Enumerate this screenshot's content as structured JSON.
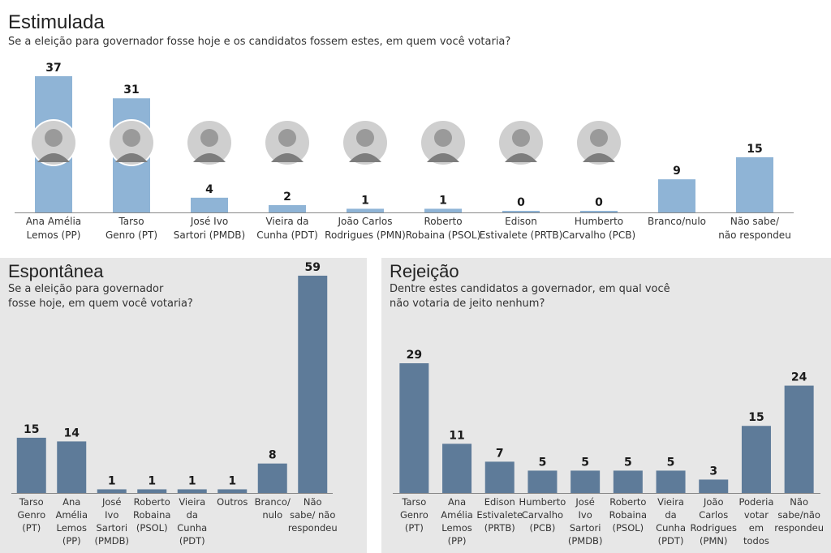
{
  "colors": {
    "light_bar": "#8fb4d6",
    "dark_bar": "#5e7b99",
    "axis": "#888888",
    "panel_bg": "#e7e7e7"
  },
  "charts": [
    {
      "id": "estimulada",
      "title": "Estimulada",
      "subtitle": "Se a eleição para governador fosse hoje e os candidatos fossem estes, em quem você votaria?",
      "chart_data": {
        "type": "bar",
        "categories": [
          [
            "Ana Amélia",
            "Lemos (PP)"
          ],
          [
            "Tarso",
            "Genro (PT)"
          ],
          [
            "José Ivo",
            "Sartori (PMDB)"
          ],
          [
            "Vieira da",
            "Cunha (PDT)"
          ],
          [
            "João Carlos",
            "Rodrigues (PMN)"
          ],
          [
            "Roberto",
            "Robaina (PSOL)"
          ],
          [
            "Edison",
            "Estivalete (PRTB)"
          ],
          [
            "Humberto",
            "Carvalho (PCB)"
          ],
          [
            "Branco/nulo"
          ],
          [
            "Não sabe/",
            "não respondeu"
          ]
        ],
        "values": [
          37,
          31,
          4,
          2,
          1,
          1,
          0,
          0,
          9,
          15
        ],
        "photo_icons": [
          "candidate-photo-icon",
          "candidate-photo-icon",
          "candidate-photo-icon",
          "candidate-photo-icon",
          "candidate-photo-icon",
          "candidate-photo-icon",
          "candidate-photo-icon",
          "candidate-photo-icon",
          "",
          ""
        ]
      }
    },
    {
      "id": "espontanea",
      "title": "Espontânea",
      "subtitle": "Se a eleição para governador\nfosse hoje, em quem você votaria?",
      "chart_data": {
        "type": "bar",
        "categories": [
          [
            "Tarso",
            "Genro",
            "(PT)"
          ],
          [
            "Ana",
            "Amélia",
            "Lemos",
            "(PP)"
          ],
          [
            "José",
            "Ivo",
            "Sartori",
            "(PMDB)"
          ],
          [
            "Roberto",
            "Robaina",
            "(PSOL)"
          ],
          [
            "Vieira",
            "da",
            "Cunha",
            "(PDT)"
          ],
          [
            "Outros"
          ],
          [
            "Branco/",
            "nulo"
          ],
          [
            "Não",
            "sabe/ não",
            "respondeu"
          ]
        ],
        "values": [
          15,
          14,
          1,
          1,
          1,
          1,
          8,
          59
        ]
      }
    },
    {
      "id": "rejeicao",
      "title": "Rejeição",
      "subtitle": "Dentre estes candidatos a governador, em qual você\nnão votaria de jeito nenhum?",
      "chart_data": {
        "type": "bar",
        "categories": [
          [
            "Tarso",
            "Genro",
            "(PT)"
          ],
          [
            "Ana",
            "Amélia",
            "Lemos",
            "(PP)"
          ],
          [
            "Edison",
            "Estivalete",
            "(PRTB)"
          ],
          [
            "Humberto",
            "Carvalho",
            "(PCB)"
          ],
          [
            "José",
            "Ivo",
            "Sartori",
            "(PMDB)"
          ],
          [
            "Roberto",
            "Robaina",
            "(PSOL)"
          ],
          [
            "Vieira",
            "da",
            "Cunha",
            "(PDT)"
          ],
          [
            "João",
            "Carlos",
            "Rodrigues",
            "(PMN)"
          ],
          [
            "Poderia",
            "votar",
            "em",
            "todos"
          ],
          [
            "Não",
            "sabe/não",
            "respondeu"
          ]
        ],
        "values": [
          29,
          11,
          7,
          5,
          5,
          5,
          5,
          3,
          15,
          24
        ]
      }
    }
  ]
}
